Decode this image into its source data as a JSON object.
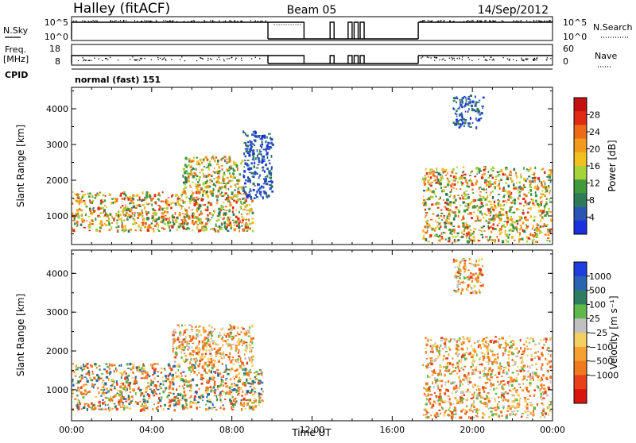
{
  "header": {
    "station": "Halley (fitACF)",
    "beam": "Beam 05",
    "date": "14/Sep/2012"
  },
  "strip_labels": {
    "nsky": "N.Sky",
    "nsky_ticks": [
      "10^5",
      "10^0"
    ],
    "nsearch": "N.Search",
    "nsearch_ticks": [
      "10^5",
      "10^0"
    ],
    "freq": "Freq.",
    "freq_unit": "[MHz]",
    "freq_ticks": [
      "18",
      "8"
    ],
    "nave": "Nave",
    "nave_ticks": [
      "60",
      "0"
    ],
    "cpid": "CPID",
    "cpid_value": "normal (fast) 151"
  },
  "chart_data": [
    {
      "type": "heatmap",
      "name": "power",
      "ylabel": "Slant Range [km]",
      "yticks": [
        "1000",
        "2000",
        "3000",
        "4000"
      ],
      "yrange_km": [
        200,
        4600
      ],
      "xrange_hours": [
        0,
        24
      ],
      "colorbar": {
        "label": "Power [dB]",
        "ticks": [
          "4",
          "8",
          "12",
          "16",
          "20",
          "24",
          "28"
        ],
        "colors": [
          "#1a2fe0",
          "#2a55b5",
          "#2f7a58",
          "#3e9a3a",
          "#a8d23a",
          "#f0c020",
          "#f29a1e",
          "#ee6a18",
          "#e02a14",
          "#c4100f"
        ]
      },
      "regions": [
        {
          "t": [
            0.0,
            9.0
          ],
          "r": [
            600,
            1700
          ],
          "level": "high"
        },
        {
          "t": [
            5.5,
            8.5
          ],
          "r": [
            1700,
            2700
          ],
          "level": "medium"
        },
        {
          "t": [
            8.5,
            10.0
          ],
          "r": [
            1500,
            3400
          ],
          "level": "low"
        },
        {
          "t": [
            17.5,
            23.9
          ],
          "r": [
            300,
            2400
          ],
          "level": "high"
        },
        {
          "t": [
            19.0,
            20.5
          ],
          "r": [
            3500,
            4400
          ],
          "level": "low"
        }
      ]
    },
    {
      "type": "heatmap",
      "name": "velocity",
      "ylabel": "Slant Range [km]",
      "yticks": [
        "1000",
        "2000",
        "3000",
        "4000"
      ],
      "yrange_km": [
        200,
        4600
      ],
      "xrange_hours": [
        0,
        24
      ],
      "xticks": [
        "00:00",
        "04:00",
        "08:00",
        "12:00",
        "16:00",
        "20:00",
        "00:00"
      ],
      "xlabel": "Time UT",
      "colorbar": {
        "label": "Velocity [m s⁻¹]",
        "ticks": [
          "1000",
          "500",
          "100",
          "25",
          "−25",
          "−100",
          "−500",
          "−1000"
        ],
        "colors": [
          "#1e3ee0",
          "#2a63b0",
          "#2f7d60",
          "#5fb84a",
          "#c0c0c0",
          "#f4d060",
          "#f5a030",
          "#ef7a1e",
          "#e8401a",
          "#d9140f"
        ]
      },
      "regions": [
        {
          "t": [
            0.0,
            9.5
          ],
          "r": [
            500,
            1700
          ],
          "level": "mixed"
        },
        {
          "t": [
            5.0,
            9.0
          ],
          "r": [
            1700,
            2700
          ],
          "level": "negative"
        },
        {
          "t": [
            17.5,
            23.9
          ],
          "r": [
            300,
            2400
          ],
          "level": "negative"
        },
        {
          "t": [
            19.0,
            20.5
          ],
          "r": [
            3500,
            4400
          ],
          "level": "negative"
        }
      ]
    }
  ]
}
